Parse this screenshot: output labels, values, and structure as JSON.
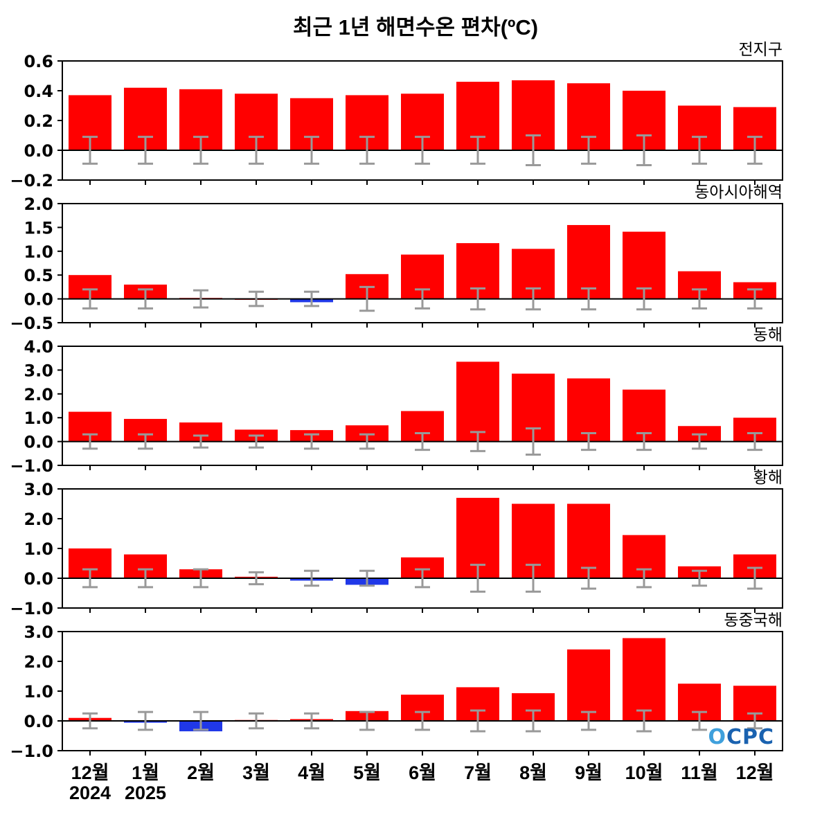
{
  "title": "최근 1년 해면수온 편차(ºC)",
  "watermark": "OCPC",
  "x_labels": [
    "12월",
    "1월",
    "2월",
    "3월",
    "4월",
    "5월",
    "6월",
    "7월",
    "8월",
    "9월",
    "10월",
    "11월",
    "12월"
  ],
  "year_labels": [
    {
      "text": "2024",
      "index": 0
    },
    {
      "text": "2025",
      "index": 1
    }
  ],
  "colors": {
    "positive": "#ff0000",
    "negative": "#2038e8",
    "error": "#999999",
    "axis": "#000000",
    "watermark_o": "#3fa0dc",
    "watermark_text": "#1a62b0"
  },
  "chart_data": [
    {
      "type": "bar",
      "region": "전지구",
      "ylim": [
        -0.2,
        0.6
      ],
      "yticks": [
        0.6,
        0.4,
        0.2,
        0.0,
        -0.2
      ],
      "categories": [
        "12월",
        "1월",
        "2월",
        "3월",
        "4월",
        "5월",
        "6월",
        "7월",
        "8월",
        "9월",
        "10월",
        "11월",
        "12월"
      ],
      "values": [
        0.37,
        0.42,
        0.41,
        0.38,
        0.35,
        0.37,
        0.38,
        0.46,
        0.47,
        0.45,
        0.4,
        0.3,
        0.29
      ],
      "errors": [
        0.09,
        0.09,
        0.09,
        0.09,
        0.09,
        0.09,
        0.09,
        0.09,
        0.1,
        0.09,
        0.1,
        0.09,
        0.09
      ]
    },
    {
      "type": "bar",
      "region": "동아시아해역",
      "ylim": [
        -0.5,
        2.0
      ],
      "yticks": [
        2.0,
        1.5,
        1.0,
        0.5,
        0.0,
        -0.5
      ],
      "categories": [
        "12월",
        "1월",
        "2월",
        "3월",
        "4월",
        "5월",
        "6월",
        "7월",
        "8월",
        "9월",
        "10월",
        "11월",
        "12월"
      ],
      "values": [
        0.5,
        0.3,
        0.02,
        0.01,
        -0.07,
        0.52,
        0.93,
        1.17,
        1.05,
        1.55,
        1.41,
        0.58,
        0.35
      ],
      "errors": [
        0.2,
        0.2,
        0.18,
        0.15,
        0.15,
        0.25,
        0.2,
        0.22,
        0.22,
        0.22,
        0.22,
        0.2,
        0.2
      ]
    },
    {
      "type": "bar",
      "region": "동해",
      "ylim": [
        -1.0,
        4.0
      ],
      "yticks": [
        4.0,
        3.0,
        2.0,
        1.0,
        0.0,
        -1.0
      ],
      "categories": [
        "12월",
        "1월",
        "2월",
        "3월",
        "4월",
        "5월",
        "6월",
        "7월",
        "8월",
        "9월",
        "10월",
        "11월",
        "12월"
      ],
      "values": [
        1.25,
        0.95,
        0.8,
        0.5,
        0.48,
        0.68,
        1.28,
        3.35,
        2.85,
        2.65,
        2.18,
        0.65,
        1.0
      ],
      "errors": [
        0.3,
        0.3,
        0.25,
        0.25,
        0.3,
        0.3,
        0.35,
        0.4,
        0.55,
        0.35,
        0.35,
        0.3,
        0.35
      ]
    },
    {
      "type": "bar",
      "region": "황해",
      "ylim": [
        -1.0,
        3.0
      ],
      "yticks": [
        3.0,
        2.0,
        1.0,
        0.0,
        -1.0
      ],
      "categories": [
        "12월",
        "1월",
        "2월",
        "3월",
        "4월",
        "5월",
        "6월",
        "7월",
        "8월",
        "9월",
        "10월",
        "11월",
        "12월"
      ],
      "values": [
        1.0,
        0.8,
        0.3,
        0.05,
        -0.08,
        -0.22,
        0.7,
        2.7,
        2.5,
        2.5,
        1.45,
        0.4,
        0.8
      ],
      "errors": [
        0.3,
        0.3,
        0.3,
        0.2,
        0.25,
        0.25,
        0.3,
        0.45,
        0.45,
        0.35,
        0.3,
        0.25,
        0.35
      ]
    },
    {
      "type": "bar",
      "region": "동중국해",
      "ylim": [
        -1.0,
        3.0
      ],
      "yticks": [
        3.0,
        2.0,
        1.0,
        0.0,
        -1.0
      ],
      "categories": [
        "12월",
        "1월",
        "2월",
        "3월",
        "4월",
        "5월",
        "6월",
        "7월",
        "8월",
        "9월",
        "10월",
        "11월",
        "12월"
      ],
      "values": [
        0.1,
        -0.06,
        -0.35,
        0.03,
        0.06,
        0.33,
        0.88,
        1.13,
        0.93,
        2.4,
        2.78,
        1.25,
        1.18
      ],
      "errors": [
        0.25,
        0.3,
        0.3,
        0.25,
        0.25,
        0.3,
        0.3,
        0.35,
        0.35,
        0.3,
        0.35,
        0.3,
        0.25
      ]
    }
  ]
}
